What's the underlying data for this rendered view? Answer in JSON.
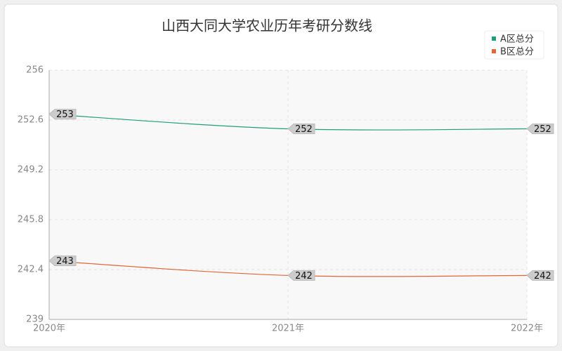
{
  "chart_data": {
    "type": "line",
    "title": "山西大同大学农业历年考研分数线",
    "categories": [
      "2020年",
      "2021年",
      "2022年"
    ],
    "series": [
      {
        "name": "A区总分",
        "color": "#1f9e7a",
        "values": [
          253,
          252,
          252
        ]
      },
      {
        "name": "B区总分",
        "color": "#e0673a",
        "values": [
          243,
          242,
          242
        ]
      }
    ],
    "ylim": [
      239,
      256
    ],
    "yticks": [
      239,
      242.4,
      245.8,
      249.2,
      252.6,
      256
    ],
    "grid": true,
    "legend": "top-right"
  }
}
